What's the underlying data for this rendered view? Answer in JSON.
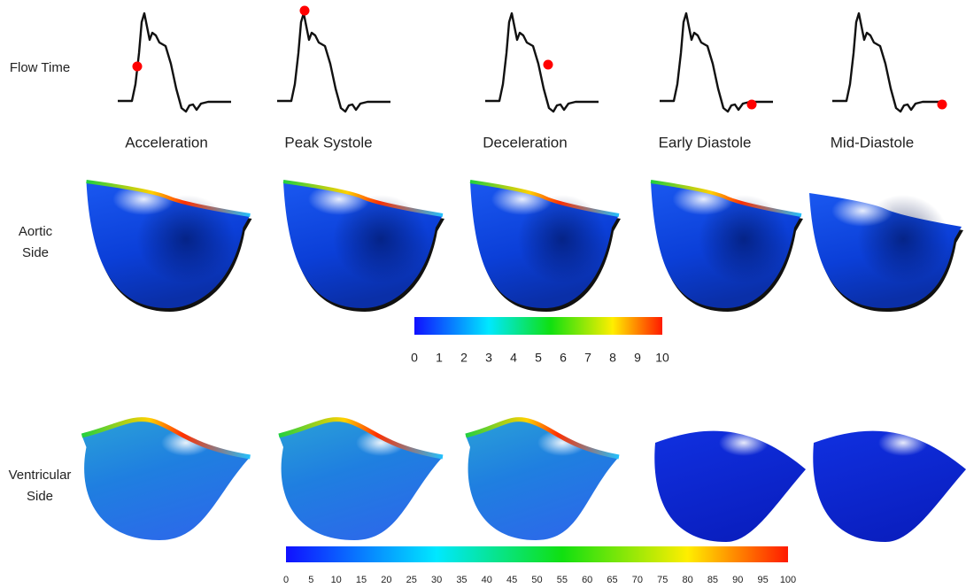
{
  "row_labels": {
    "flow_time": [
      "Flow Time"
    ],
    "aortic": [
      "Aortic",
      "Side"
    ],
    "ventricular": [
      "Ventricular",
      "Side"
    ]
  },
  "columns": [
    "Acceleration",
    "Peak Systole",
    "Deceleration",
    "Early Diastole",
    "Mid-Diastole"
  ],
  "colorbars": [
    {
      "ticks": [
        0,
        1,
        2,
        3,
        4,
        5,
        6,
        7,
        8,
        9,
        10
      ]
    },
    {
      "ticks": [
        0,
        5,
        10,
        15,
        20,
        25,
        30,
        35,
        40,
        45,
        50,
        55,
        60,
        65,
        70,
        75,
        80,
        85,
        90,
        95,
        100
      ]
    }
  ]
}
